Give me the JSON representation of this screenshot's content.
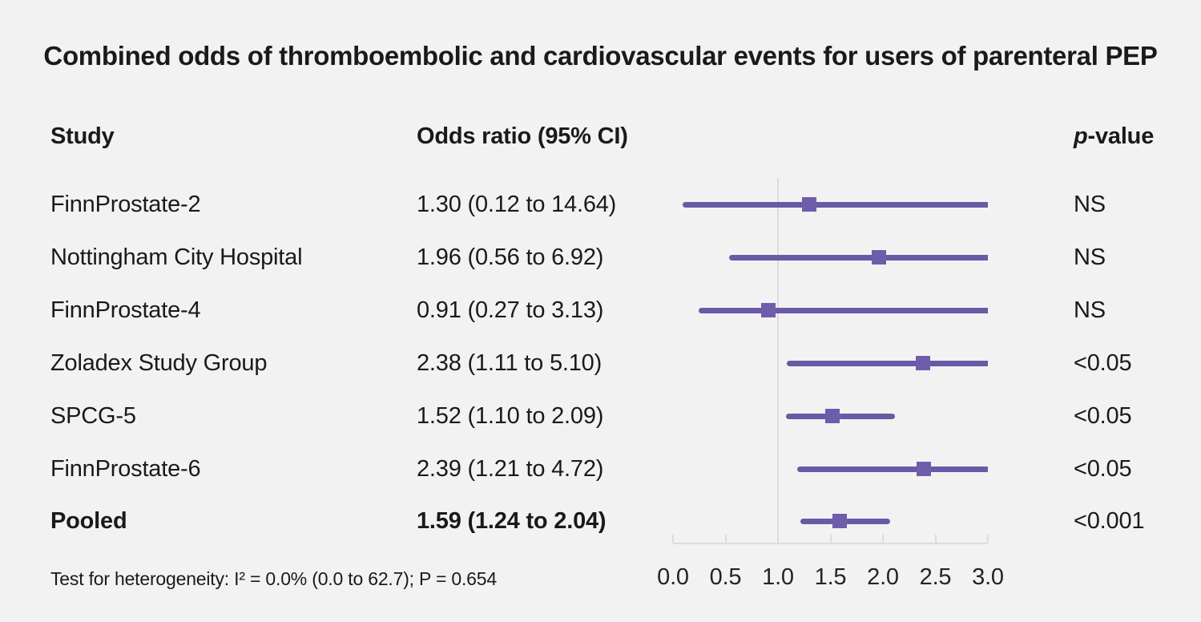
{
  "title": "Combined odds of thromboembolic and cardiovascular events for users of parenteral PEP",
  "columns": {
    "study": "Study",
    "odds_ratio": "Odds ratio (95% CI)",
    "p_italic": "p",
    "p_suffix": "-value"
  },
  "footer": "Test for heterogeneity: I² = 0.0% (0.0 to 62.7); P = 0.654",
  "chart_data": {
    "type": "forest",
    "title": "Combined odds of thromboembolic and cardiovascular events for users of parenteral PEP",
    "x_axis": {
      "label": "Odds ratio",
      "min": 0.0,
      "max": 3.0,
      "ticks": [
        0.0,
        0.5,
        1.0,
        1.5,
        2.0,
        2.5,
        3.0
      ],
      "tick_labels": [
        "0.0",
        "0.5",
        "1.0",
        "1.5",
        "2.0",
        "2.5",
        "3.0"
      ],
      "reference_line": 1.0
    },
    "rows": [
      {
        "study": "FinnProstate-2",
        "or_text": "1.30 (0.12 to 14.64)",
        "estimate": 1.3,
        "lower": 0.12,
        "upper": 14.64,
        "p_value": "NS",
        "bold": false
      },
      {
        "study": "Nottingham City Hospital",
        "or_text": "1.96 (0.56 to 6.92)",
        "estimate": 1.96,
        "lower": 0.56,
        "upper": 6.92,
        "p_value": "NS",
        "bold": false
      },
      {
        "study": "FinnProstate-4",
        "or_text": "0.91 (0.27 to 3.13)",
        "estimate": 0.91,
        "lower": 0.27,
        "upper": 3.13,
        "p_value": "NS",
        "bold": false
      },
      {
        "study": "Zoladex Study Group",
        "or_text": "2.38 (1.11 to 5.10)",
        "estimate": 2.38,
        "lower": 1.11,
        "upper": 5.1,
        "p_value": "<0.05",
        "bold": false
      },
      {
        "study": "SPCG-5",
        "or_text": "1.52 (1.10 to 2.09)",
        "estimate": 1.52,
        "lower": 1.1,
        "upper": 2.09,
        "p_value": "<0.05",
        "bold": false
      },
      {
        "study": "FinnProstate-6",
        "or_text": "2.39 (1.21 to 4.72)",
        "estimate": 2.39,
        "lower": 1.21,
        "upper": 4.72,
        "p_value": "<0.05",
        "bold": false
      },
      {
        "study": "Pooled",
        "or_text": "1.59 (1.24 to 2.04)",
        "estimate": 1.59,
        "lower": 1.24,
        "upper": 2.04,
        "p_value": "<0.001",
        "bold": true
      }
    ],
    "heterogeneity": "Test for heterogeneity: I² = 0.0% (0.0 to 62.7); P = 0.654",
    "colors": {
      "line": "#695aa6",
      "marker": "#6e5dab",
      "reference_line": "#d9dce2",
      "axis": "#d9dce2",
      "background": "#f2f2f2",
      "text": "#1a1a1a"
    },
    "legend": "none",
    "grid": "off"
  }
}
